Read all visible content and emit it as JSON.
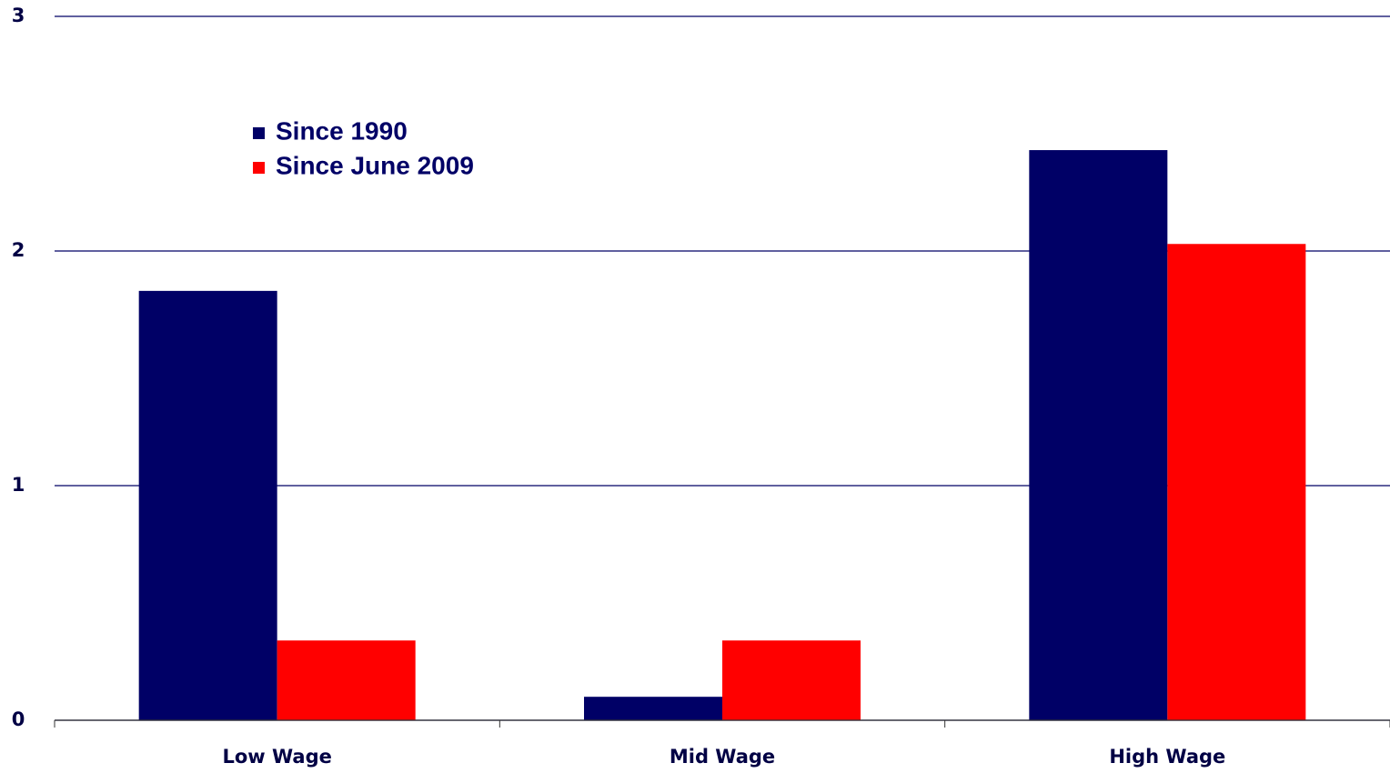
{
  "chart_data": {
    "type": "bar",
    "categories": [
      "Low Wage",
      "Mid Wage",
      "High Wage"
    ],
    "series": [
      {
        "name": "Since 1990",
        "color": "#000066",
        "values": [
          1.83,
          0.1,
          2.43
        ]
      },
      {
        "name": "Since June 2009",
        "color": "#ff0000",
        "values": [
          0.34,
          0.34,
          2.03
        ]
      }
    ],
    "ylim": [
      0,
      3
    ],
    "yticks": [
      0,
      1,
      2,
      3
    ],
    "grid": true
  }
}
